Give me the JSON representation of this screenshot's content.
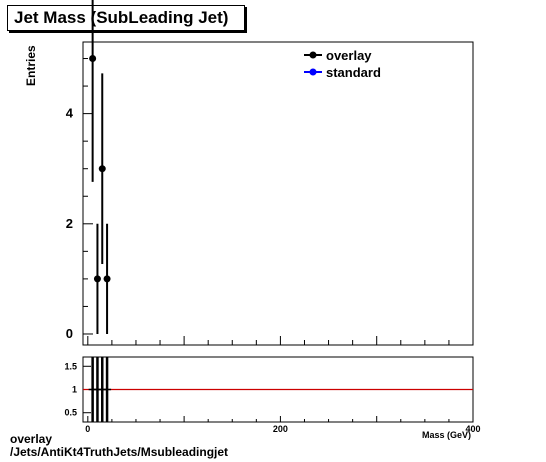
{
  "chart_data": [
    {
      "type": "scatter",
      "title": "Jet Mass (SubLeading Jet)",
      "ylabel": "Entries",
      "xlim": [
        -5,
        400
      ],
      "ylim": [
        -0.2,
        5.3
      ],
      "x_ticks": [
        0,
        200,
        400
      ],
      "y_ticks": [
        0,
        2,
        4
      ],
      "legend_position": "top-right",
      "series": [
        {
          "name": "overlay",
          "color": "#000000",
          "points": [
            {
              "x": 5,
              "y": 5,
              "err": 2.24
            },
            {
              "x": 10,
              "y": 1,
              "err": 1
            },
            {
              "x": 15,
              "y": 3,
              "err": 1.73
            },
            {
              "x": 20,
              "y": 1,
              "err": 1
            }
          ]
        },
        {
          "name": "standard",
          "color": "#0000ff",
          "points": []
        }
      ]
    },
    {
      "type": "line",
      "xlabel": "Mass (GeV)",
      "xlim": [
        -5,
        400
      ],
      "ylim": [
        0.3,
        1.7
      ],
      "x_ticks": [
        0,
        200,
        400
      ],
      "y_ticks": [
        0.5,
        1,
        1.5
      ],
      "reference_line": 1,
      "reference_color": "#cc0000",
      "bands": [
        5,
        10,
        15,
        20
      ]
    }
  ],
  "footer": {
    "line1": "overlay",
    "line2": "/Jets/AntiKt4TruthJets/Msubleadingjet"
  }
}
